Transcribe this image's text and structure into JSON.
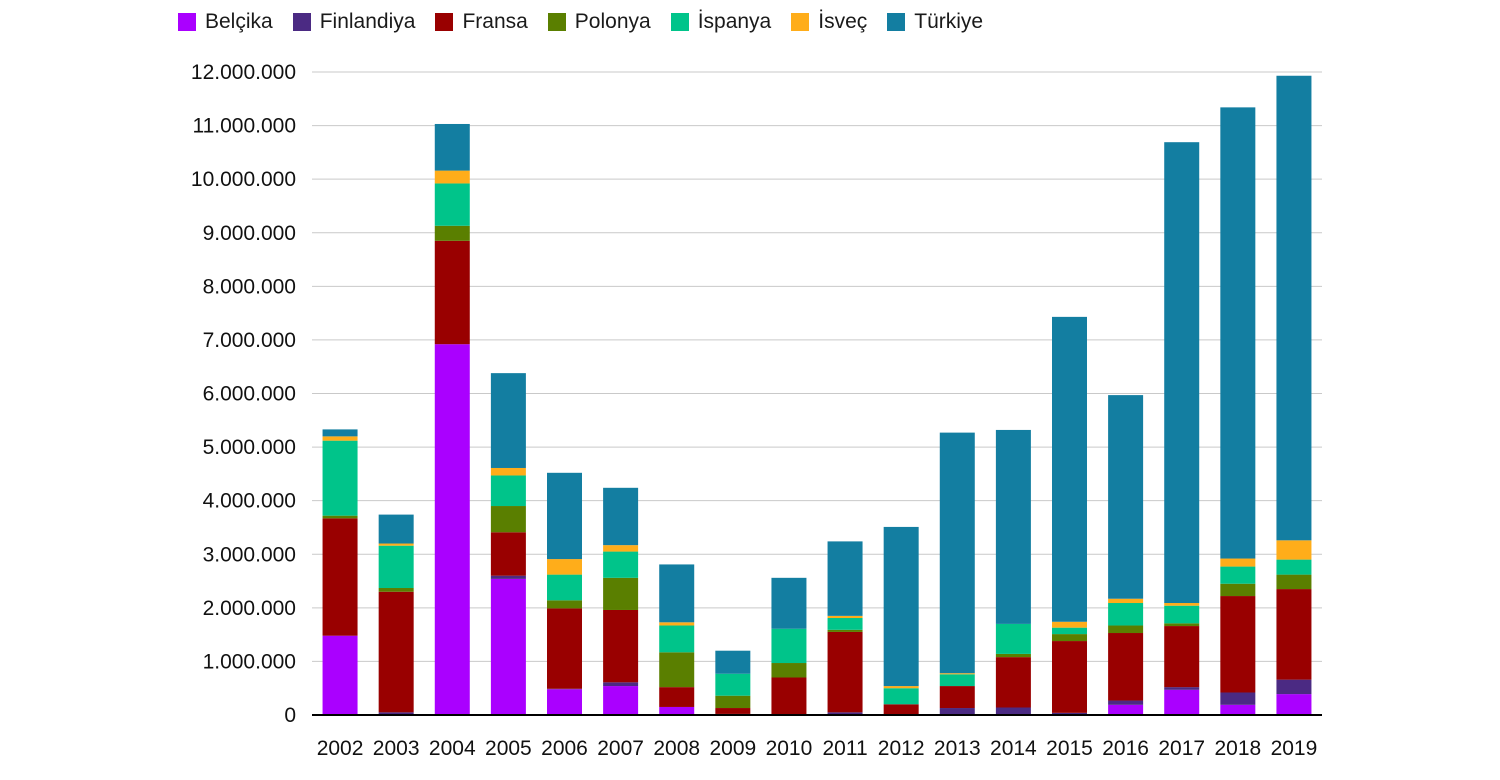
{
  "chart_data": {
    "type": "bar",
    "stacked": true,
    "categories": [
      "2002",
      "2003",
      "2004",
      "2005",
      "2006",
      "2007",
      "2008",
      "2009",
      "2010",
      "2011",
      "2012",
      "2013",
      "2014",
      "2015",
      "2016",
      "2017",
      "2018",
      "2019"
    ],
    "series": [
      {
        "name": "Belçika",
        "color": "#aa00ff",
        "values": [
          1480000,
          0,
          6920000,
          2540000,
          480000,
          540000,
          150000,
          0,
          0,
          0,
          0,
          0,
          0,
          0,
          190000,
          470000,
          190000,
          390000
        ]
      },
      {
        "name": "Finlandiya",
        "color": "#4b2a83",
        "values": [
          0,
          50000,
          0,
          60000,
          10000,
          70000,
          0,
          20000,
          10000,
          50000,
          10000,
          130000,
          140000,
          40000,
          80000,
          50000,
          230000,
          270000
        ]
      },
      {
        "name": "Fransa",
        "color": "#990000",
        "values": [
          2190000,
          2250000,
          1930000,
          810000,
          1500000,
          1350000,
          370000,
          110000,
          690000,
          1500000,
          190000,
          410000,
          940000,
          1340000,
          1260000,
          1140000,
          1800000,
          1690000
        ]
      },
      {
        "name": "Polonya",
        "color": "#5a7f00",
        "values": [
          50000,
          70000,
          280000,
          490000,
          150000,
          600000,
          650000,
          230000,
          270000,
          40000,
          0,
          0,
          60000,
          130000,
          140000,
          50000,
          230000,
          270000
        ]
      },
      {
        "name": "İspanya",
        "color": "#00c48a",
        "values": [
          1400000,
          790000,
          790000,
          570000,
          480000,
          490000,
          500000,
          410000,
          640000,
          220000,
          300000,
          220000,
          560000,
          120000,
          420000,
          330000,
          320000,
          280000
        ]
      },
      {
        "name": "İsveç",
        "color": "#ffad1a",
        "values": [
          80000,
          40000,
          240000,
          140000,
          290000,
          120000,
          60000,
          0,
          0,
          40000,
          40000,
          20000,
          0,
          110000,
          80000,
          50000,
          150000,
          360000
        ]
      },
      {
        "name": "Türkiye",
        "color": "#137ea1",
        "values": [
          130000,
          540000,
          870000,
          1770000,
          1610000,
          1070000,
          1080000,
          430000,
          950000,
          1390000,
          2970000,
          4490000,
          3620000,
          5690000,
          3800000,
          8600000,
          8420000,
          8670000
        ]
      }
    ],
    "y_ticks": [
      "0",
      "1.000.000",
      "2.000.000",
      "3.000.000",
      "4.000.000",
      "5.000.000",
      "6.000.000",
      "7.000.000",
      "8.000.000",
      "9.000.000",
      "10.000.000",
      "11.000.000",
      "12.000.000"
    ],
    "ylim": [
      0,
      12000000
    ],
    "ystep": 1000000,
    "grid": true,
    "legend_position": "top",
    "xlabel": "",
    "ylabel": "",
    "title": ""
  }
}
